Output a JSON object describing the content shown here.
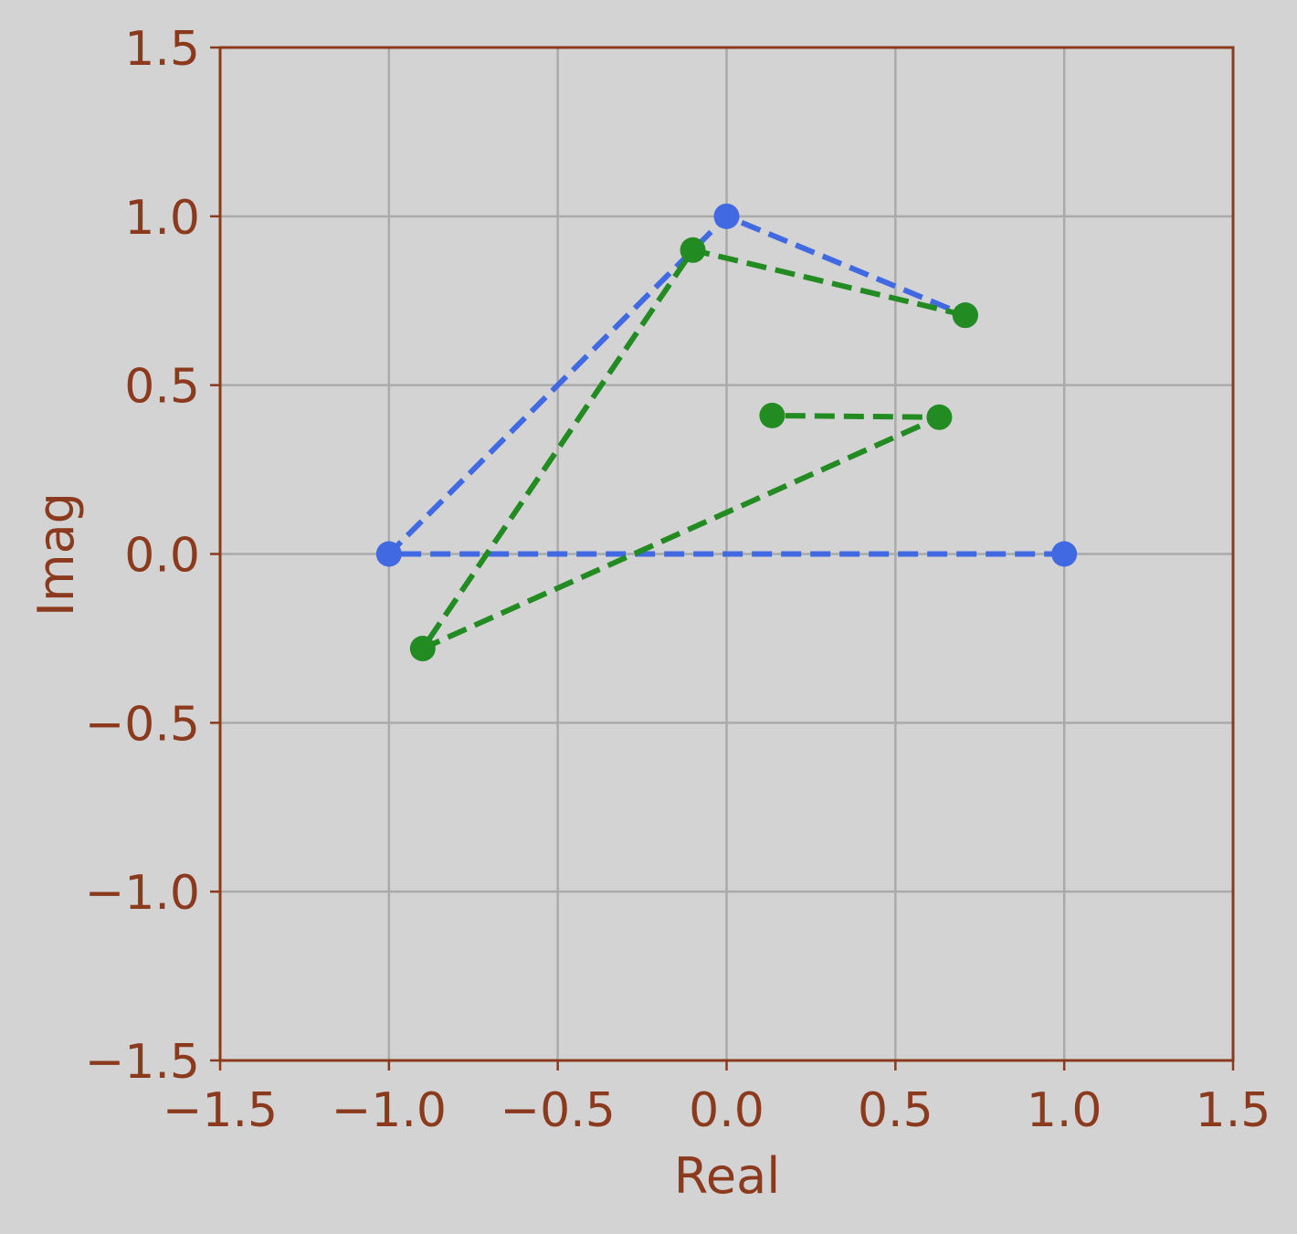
{
  "chart_data": {
    "type": "scatter",
    "xlabel": "Real",
    "ylabel": "Imag",
    "xlim": [
      -1.5,
      1.5
    ],
    "ylim": [
      -1.5,
      1.5
    ],
    "xticks": [
      "−1.5",
      "−1.0",
      "−0.5",
      "0.0",
      "0.5",
      "1.0",
      "1.5"
    ],
    "yticks": [
      "−1.5",
      "−1.0",
      "−0.5",
      "0.0",
      "0.5",
      "1.0",
      "1.5"
    ],
    "grid": true,
    "colors": {
      "background": "#d3d3d3",
      "axis": "#8b3a1e",
      "grid": "#aaaaaa"
    },
    "series": [
      {
        "color": "#4169e1",
        "line_style": "dashed",
        "points": [
          {
            "x": 1.0,
            "y": 0.0
          },
          {
            "x": -1.0,
            "y": 0.0
          },
          {
            "x": 0.0,
            "y": 1.0
          },
          {
            "x": 0.707,
            "y": 0.707
          }
        ]
      },
      {
        "color": "#228b22",
        "line_style": "dashed",
        "points": [
          {
            "x": 0.707,
            "y": 0.707
          },
          {
            "x": -0.1,
            "y": 0.9
          },
          {
            "x": -0.9,
            "y": -0.28
          },
          {
            "x": 0.63,
            "y": 0.405
          },
          {
            "x": 0.135,
            "y": 0.41
          }
        ]
      }
    ]
  }
}
